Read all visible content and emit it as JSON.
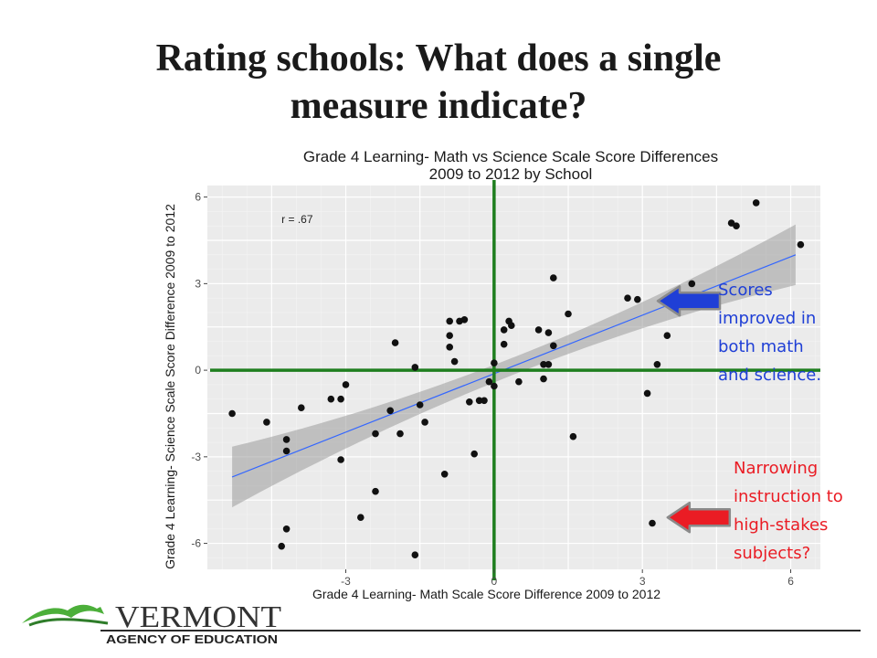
{
  "slide": {
    "title_line1": "Rating schools: What does a single",
    "title_line2": "measure indicate?"
  },
  "callouts": {
    "blue": {
      "lines": [
        "Scores",
        "improved in",
        "both math",
        "and science."
      ],
      "color": "#1f3fd6"
    },
    "red": {
      "lines": [
        "Narrowing",
        "instruction to",
        "high-stakes",
        "subjects?"
      ],
      "color": "#ea1c24"
    }
  },
  "logo": {
    "name": "VERMONT",
    "subtitle": "AGENCY OF EDUCATION"
  },
  "chart_data": {
    "type": "scatter",
    "title": [
      "Grade 4 Learning- Math vs Science Scale Score Differences",
      "2009 to 2012 by School"
    ],
    "xlabel": "Grade 4 Learning- Math Scale Score Difference 2009 to 2012",
    "ylabel": "Grade 4 Learning- Science Scale Score Difference 2009 to 2012",
    "annotation": "r = .67",
    "xlim": [
      -5.8,
      6.6
    ],
    "ylim": [
      -6.9,
      6.4
    ],
    "xticks": [
      -3,
      0,
      3,
      6
    ],
    "yticks": [
      -6,
      -3,
      0,
      3,
      6
    ],
    "grid": true,
    "points": [
      [
        -5.3,
        -1.5
      ],
      [
        -4.6,
        -1.8
      ],
      [
        -4.2,
        -2.4
      ],
      [
        -4.2,
        -2.8
      ],
      [
        -4.2,
        -5.5
      ],
      [
        -4.3,
        -6.1
      ],
      [
        -3.9,
        -1.3
      ],
      [
        -3.3,
        -1.0
      ],
      [
        -3.1,
        -1.0
      ],
      [
        -3.1,
        -3.1
      ],
      [
        -3.0,
        -0.5
      ],
      [
        -2.7,
        -5.1
      ],
      [
        -2.4,
        -4.2
      ],
      [
        -2.4,
        -2.2
      ],
      [
        -2.1,
        -1.4
      ],
      [
        -2.0,
        0.95
      ],
      [
        -1.9,
        -2.2
      ],
      [
        -1.6,
        0.1
      ],
      [
        -1.5,
        -1.2
      ],
      [
        -1.4,
        -1.8
      ],
      [
        -1.6,
        -6.4
      ],
      [
        -1.0,
        -3.6
      ],
      [
        -0.9,
        1.7
      ],
      [
        -0.9,
        1.2
      ],
      [
        -0.9,
        0.8
      ],
      [
        -0.8,
        0.3
      ],
      [
        -0.7,
        1.7
      ],
      [
        -0.6,
        1.75
      ],
      [
        -0.5,
        -1.1
      ],
      [
        -0.4,
        -2.9
      ],
      [
        -0.3,
        -1.05
      ],
      [
        -0.2,
        -1.05
      ],
      [
        -0.1,
        -0.4
      ],
      [
        0.0,
        -0.55
      ],
      [
        0.0,
        0.25
      ],
      [
        0.2,
        1.4
      ],
      [
        0.2,
        0.9
      ],
      [
        0.3,
        1.7
      ],
      [
        0.35,
        1.55
      ],
      [
        0.5,
        -0.4
      ],
      [
        0.9,
        1.4
      ],
      [
        1.0,
        0.2
      ],
      [
        1.0,
        -0.3
      ],
      [
        1.1,
        0.2
      ],
      [
        1.1,
        1.3
      ],
      [
        1.2,
        3.2
      ],
      [
        1.2,
        0.85
      ],
      [
        1.5,
        1.95
      ],
      [
        1.6,
        -2.3
      ],
      [
        2.7,
        2.5
      ],
      [
        2.9,
        2.45
      ],
      [
        3.1,
        -0.8
      ],
      [
        3.2,
        -5.3
      ],
      [
        3.3,
        0.2
      ],
      [
        3.5,
        1.2
      ],
      [
        4.0,
        3.0
      ],
      [
        4.8,
        5.1
      ],
      [
        4.9,
        5.0
      ],
      [
        5.3,
        5.8
      ],
      [
        6.2,
        4.35
      ]
    ],
    "regression": {
      "x": [
        -5.3,
        6.1
      ],
      "y": [
        -3.7,
        4.0
      ],
      "ci_half_width_ends": 1.05,
      "ci_half_width_center": 0.3
    },
    "reference_lines": {
      "x": 0,
      "y": 0,
      "color": "#1e7e1e"
    },
    "arrows": [
      {
        "color": "#1f3fd6",
        "target": [
          3.2,
          2.4
        ]
      },
      {
        "color": "#ea1c24",
        "target": [
          3.4,
          -5.1
        ]
      }
    ]
  }
}
